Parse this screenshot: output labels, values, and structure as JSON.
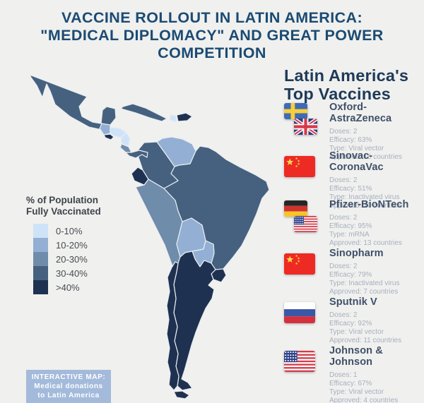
{
  "title": {
    "text": "VACCINE ROLLOUT IN LATIN AMERICA:\n\"MEDICAL DIPLOMACY\" AND GREAT POWER\nCOMPETITION"
  },
  "legend": {
    "title": "% of Population\nFully Vaccinated",
    "buckets": [
      {
        "label": "0-10%",
        "color": "#cfe3f8"
      },
      {
        "label": "10-20%",
        "color": "#93afd4"
      },
      {
        "label": "20-30%",
        "color": "#6f8cab"
      },
      {
        "label": "30-40%",
        "color": "#45617f"
      },
      {
        "label": ">40%",
        "color": "#1f3150"
      }
    ]
  },
  "map": {
    "countries": [
      {
        "id": "mexico",
        "name": "Mexico",
        "bucket": "30-40%"
      },
      {
        "id": "cuba",
        "name": "Cuba",
        "bucket": "30-40%"
      },
      {
        "id": "haiti",
        "name": "Haiti",
        "bucket": "0-10%"
      },
      {
        "id": "dominican-republic",
        "name": "Dominican Republic",
        "bucket": ">40%"
      },
      {
        "id": "guatemala",
        "name": "Guatemala",
        "bucket": "10-20%"
      },
      {
        "id": "honduras",
        "name": "Honduras",
        "bucket": "0-10%"
      },
      {
        "id": "el-salvador",
        "name": "El Salvador",
        "bucket": ">40%"
      },
      {
        "id": "nicaragua",
        "name": "Nicaragua",
        "bucket": "0-10%"
      },
      {
        "id": "costa-rica",
        "name": "Costa Rica",
        "bucket": "20-30%"
      },
      {
        "id": "panama",
        "name": "Panama",
        "bucket": "30-40%"
      },
      {
        "id": "colombia",
        "name": "Colombia",
        "bucket": "30-40%"
      },
      {
        "id": "venezuela",
        "name": "Venezuela",
        "bucket": "10-20%"
      },
      {
        "id": "ecuador",
        "name": "Ecuador",
        "bucket": ">40%"
      },
      {
        "id": "peru",
        "name": "Peru",
        "bucket": "20-30%"
      },
      {
        "id": "brazil",
        "name": "Brazil",
        "bucket": "30-40%"
      },
      {
        "id": "bolivia",
        "name": "Bolivia",
        "bucket": "10-20%"
      },
      {
        "id": "paraguay",
        "name": "Paraguay",
        "bucket": "10-20%"
      },
      {
        "id": "uruguay",
        "name": "Uruguay",
        "bucket": ">40%"
      },
      {
        "id": "chile",
        "name": "Chile",
        "bucket": ">40%"
      },
      {
        "id": "argentina",
        "name": "Argentina",
        "bucket": ">40%"
      },
      {
        "id": "tierra-del-fuego",
        "name": "Tierra del Fuego",
        "bucket": ">40%"
      }
    ]
  },
  "badge": {
    "text": "INTERACTIVE MAP:\nMedical donations\nto Latin America",
    "bg": "#a3badb"
  },
  "vaccines": {
    "heading": "Latin America's\nTop Vaccines",
    "items": [
      {
        "name": "Oxford-AstraZeneca",
        "flags": [
          "sweden",
          "uk"
        ],
        "details": [
          "Doses: 2",
          "Efficacy: 63%",
          "Type: Viral vector",
          "Approved: 15 countries"
        ]
      },
      {
        "name": "Sinovac-CoronaVac",
        "flags": [
          "china"
        ],
        "details": [
          "Doses: 2",
          "Efficacy: 51%",
          "Type: Inactivated virus",
          "Approved: 10 countries"
        ]
      },
      {
        "name": "Pfizer-BioNTech",
        "flags": [
          "germany",
          "usa"
        ],
        "details": [
          "Doses: 2",
          "Efficacy: 95%",
          "Type: mRNA",
          "Approved: 13 countries"
        ]
      },
      {
        "name": "Sinopharm",
        "flags": [
          "china"
        ],
        "details": [
          "Doses: 2",
          "Efficacy: 79%",
          "Type: Inactivated virus",
          "Approved: 7 countries"
        ]
      },
      {
        "name": "Sputnik V",
        "flags": [
          "russia"
        ],
        "details": [
          "Doses: 2",
          "Efficacy: 92%",
          "Type: Viral vector",
          "Approved: 11 countries"
        ]
      },
      {
        "name": "Johnson & Johnson",
        "flags": [
          "usa"
        ],
        "details": [
          "Doses: 1",
          "Efficacy: 67%",
          "Type: Viral vector",
          "Approved: 4 countries"
        ]
      }
    ]
  }
}
